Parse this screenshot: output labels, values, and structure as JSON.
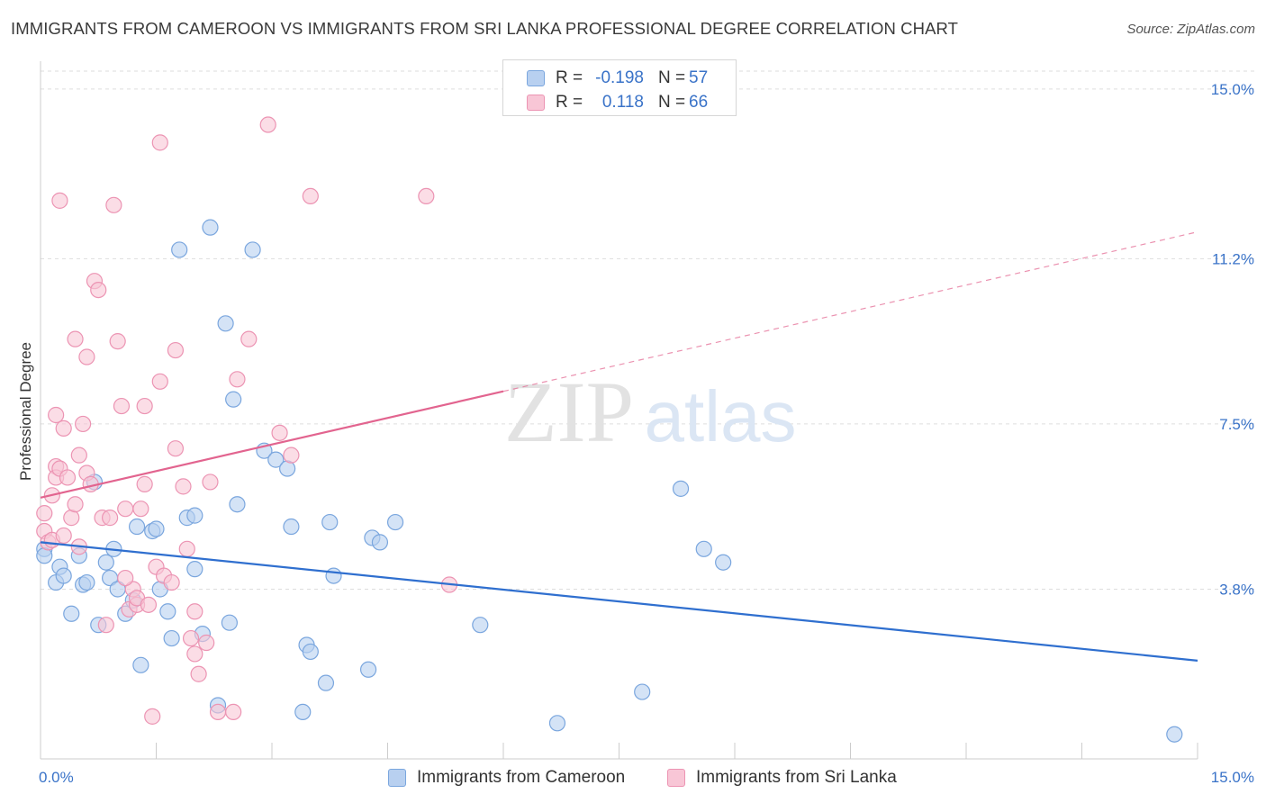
{
  "title": "IMMIGRANTS FROM CAMEROON VS IMMIGRANTS FROM SRI LANKA PROFESSIONAL DEGREE CORRELATION CHART",
  "source": "Source: ZipAtlas.com",
  "watermark": {
    "zip": "ZIP",
    "atlas": "atlas"
  },
  "colors": {
    "cameroon_fill": "#b8d0f0",
    "cameroon_stroke": "#7aa6de",
    "cameroon_line": "#2f6fcf",
    "srilanka_fill": "#f8c6d6",
    "srilanka_stroke": "#ec94b3",
    "srilanka_line": "#e2648f",
    "axis_label": "#3a73c8",
    "grid": "#dddddd"
  },
  "legend_top": {
    "r_label": "R =",
    "n_label": "N =",
    "rows": [
      {
        "series": "cameroon",
        "r": "-0.198",
        "n": "57"
      },
      {
        "series": "srilanka",
        "r": "0.118",
        "n": "66"
      }
    ]
  },
  "chart_data": {
    "type": "scatter",
    "ylabel": "Professional Degree",
    "xlim": [
      0,
      15
    ],
    "ylim": [
      0,
      15.4
    ],
    "x_tick_labels": [
      "0.0%",
      "15.0%"
    ],
    "y_ticks": [
      3.8,
      7.5,
      11.2,
      15.0
    ],
    "y_tick_labels": [
      "3.8%",
      "7.5%",
      "11.2%",
      "15.0%"
    ],
    "legend_position": "bottom-center",
    "grid": true,
    "series": [
      {
        "name": "Immigrants from Cameroon",
        "key": "cameroon",
        "trend": {
          "x": [
            0,
            15
          ],
          "y": [
            4.85,
            2.2
          ],
          "solid_to": 15
        },
        "points": [
          [
            0.05,
            4.7
          ],
          [
            0.05,
            4.55
          ],
          [
            0.2,
            3.95
          ],
          [
            0.25,
            4.3
          ],
          [
            0.3,
            4.1
          ],
          [
            0.4,
            3.25
          ],
          [
            0.5,
            4.55
          ],
          [
            0.55,
            3.9
          ],
          [
            0.6,
            3.95
          ],
          [
            0.7,
            6.2
          ],
          [
            0.75,
            3.0
          ],
          [
            0.85,
            4.4
          ],
          [
            0.9,
            4.05
          ],
          [
            0.95,
            4.7
          ],
          [
            1.0,
            3.8
          ],
          [
            1.1,
            3.25
          ],
          [
            1.2,
            3.55
          ],
          [
            1.3,
            2.1
          ],
          [
            1.25,
            5.2
          ],
          [
            1.45,
            5.1
          ],
          [
            1.55,
            3.8
          ],
          [
            1.65,
            3.3
          ],
          [
            1.7,
            2.7
          ],
          [
            1.8,
            11.4
          ],
          [
            1.9,
            5.4
          ],
          [
            2.0,
            5.45
          ],
          [
            2.0,
            4.25
          ],
          [
            2.1,
            2.8
          ],
          [
            2.2,
            11.9
          ],
          [
            2.3,
            1.2
          ],
          [
            2.4,
            9.75
          ],
          [
            2.45,
            3.05
          ],
          [
            2.5,
            8.05
          ],
          [
            2.55,
            5.7
          ],
          [
            2.75,
            11.4
          ],
          [
            2.9,
            6.9
          ],
          [
            3.05,
            6.7
          ],
          [
            3.2,
            6.5
          ],
          [
            3.25,
            5.2
          ],
          [
            3.4,
            1.05
          ],
          [
            3.45,
            2.55
          ],
          [
            3.5,
            2.4
          ],
          [
            3.7,
            1.7
          ],
          [
            3.75,
            5.3
          ],
          [
            3.8,
            4.1
          ],
          [
            4.25,
            2.0
          ],
          [
            4.3,
            4.95
          ],
          [
            4.4,
            4.85
          ],
          [
            4.6,
            5.3
          ],
          [
            5.7,
            3.0
          ],
          [
            6.7,
            0.8
          ],
          [
            7.8,
            1.5
          ],
          [
            8.3,
            6.05
          ],
          [
            8.6,
            4.7
          ],
          [
            8.85,
            4.4
          ],
          [
            14.7,
            0.55
          ],
          [
            1.5,
            5.15
          ]
        ]
      },
      {
        "name": "Immigrants from Sri Lanka",
        "key": "srilanka",
        "trend": {
          "x": [
            0,
            15
          ],
          "y": [
            5.85,
            11.8
          ],
          "solid_to": 6.0
        },
        "points": [
          [
            0.05,
            5.1
          ],
          [
            0.05,
            5.5
          ],
          [
            0.1,
            4.85
          ],
          [
            0.15,
            5.9
          ],
          [
            0.2,
            6.55
          ],
          [
            0.2,
            6.3
          ],
          [
            0.2,
            7.7
          ],
          [
            0.25,
            6.5
          ],
          [
            0.25,
            12.5
          ],
          [
            0.3,
            7.4
          ],
          [
            0.35,
            6.3
          ],
          [
            0.4,
            5.4
          ],
          [
            0.45,
            9.4
          ],
          [
            0.45,
            5.7
          ],
          [
            0.5,
            6.8
          ],
          [
            0.5,
            4.75
          ],
          [
            0.55,
            7.5
          ],
          [
            0.6,
            6.4
          ],
          [
            0.6,
            9.0
          ],
          [
            0.65,
            6.15
          ],
          [
            0.7,
            10.7
          ],
          [
            0.75,
            10.5
          ],
          [
            0.8,
            5.4
          ],
          [
            0.85,
            3.0
          ],
          [
            0.9,
            5.4
          ],
          [
            0.95,
            12.4
          ],
          [
            1.0,
            9.35
          ],
          [
            1.05,
            7.9
          ],
          [
            1.1,
            5.6
          ],
          [
            1.15,
            3.35
          ],
          [
            1.2,
            3.8
          ],
          [
            1.25,
            3.45
          ],
          [
            1.25,
            3.6
          ],
          [
            1.3,
            5.6
          ],
          [
            1.35,
            7.9
          ],
          [
            1.35,
            6.15
          ],
          [
            1.4,
            3.45
          ],
          [
            1.45,
            0.95
          ],
          [
            1.5,
            4.3
          ],
          [
            1.55,
            13.8
          ],
          [
            1.55,
            8.45
          ],
          [
            1.6,
            4.1
          ],
          [
            1.7,
            3.95
          ],
          [
            1.75,
            6.95
          ],
          [
            1.75,
            9.15
          ],
          [
            1.85,
            6.1
          ],
          [
            1.9,
            4.7
          ],
          [
            1.95,
            2.7
          ],
          [
            2.0,
            2.35
          ],
          [
            2.05,
            1.9
          ],
          [
            2.15,
            2.6
          ],
          [
            2.2,
            6.2
          ],
          [
            2.3,
            1.05
          ],
          [
            2.5,
            1.05
          ],
          [
            2.55,
            8.5
          ],
          [
            2.7,
            9.4
          ],
          [
            2.95,
            14.2
          ],
          [
            3.1,
            7.3
          ],
          [
            3.25,
            6.8
          ],
          [
            3.5,
            12.6
          ],
          [
            5.0,
            12.6
          ],
          [
            5.3,
            3.9
          ],
          [
            2.0,
            3.3
          ],
          [
            1.1,
            4.05
          ],
          [
            0.15,
            4.9
          ],
          [
            0.3,
            5.0
          ]
        ]
      }
    ]
  }
}
